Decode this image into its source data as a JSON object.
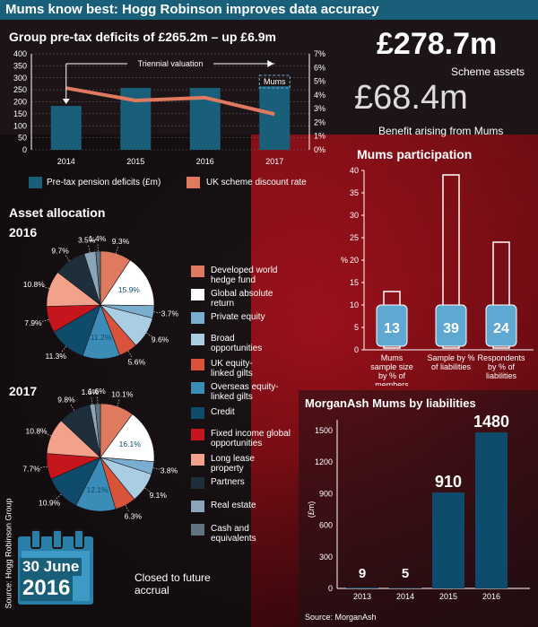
{
  "title": "Mums know best: Hogg Robinson improves data accuracy",
  "source_side": "Source: Hogg Robinson Group",
  "colors": {
    "teal": "#1a5f7a",
    "orange": "#e07a5f",
    "dark_blue": "#0f4c6b",
    "red": "#c4161c"
  },
  "deficits": {
    "heading": "Group pre-tax deficits of £265.2m – up £6.9m",
    "annotation_triennial": "Triennial valuation",
    "annotation_mums": "Mums",
    "legend_bar": "Pre-tax pension deficits (£m)",
    "legend_line": "UK scheme discount rate"
  },
  "stats": {
    "scheme_assets_value": "£278.7m",
    "scheme_assets_label": "Scheme assets",
    "benefit_value": "£68.4m",
    "benefit_label": "Benefit arising from Mums"
  },
  "participation": {
    "heading": "Mums participation",
    "y_unit": "%",
    "labels": [
      "Mums sample size by % of members",
      "Sample by % of liabilities",
      "Respondents by % of liabilities"
    ],
    "value_labels": [
      "13",
      "39",
      "24"
    ]
  },
  "asset_allocation": {
    "heading": "Asset allocation",
    "year_2016": "2016",
    "year_2017": "2017",
    "categories": [
      "Developed world hedge fund",
      "Global absolute return",
      "Private equity",
      "Broad opportunities",
      "UK equity-linked gilts",
      "Overseas equity-linked gilts",
      "Credit",
      "Fixed income global opportunities",
      "Long lease property",
      "Partners",
      "Real estate",
      "Cash and equivalents"
    ],
    "legend_colors": [
      "#e07a5f",
      "#ffffff",
      "#7aaed0",
      "#a9cde3",
      "#d9533b",
      "#3b8db8",
      "#0f4c6b",
      "#c4161c",
      "#f2a28a",
      "#1e2e3a",
      "#8aa4b8",
      "#5f7480"
    ],
    "labels_2016": [
      "9.3%",
      "15.9%",
      "3.7%",
      "9.6%",
      "5.6%",
      "11.2%",
      "11.3%",
      "7.9%",
      "10.8%",
      "9.7%",
      "3.5%",
      "1.4%"
    ],
    "labels_2017": [
      "10.1%",
      "16.1%",
      "3.8%",
      "9.1%",
      "6.3%",
      "12.1%",
      "10.9%",
      "7.7%",
      "10.8%",
      "9.8%",
      "1.6%",
      "1.6%"
    ]
  },
  "closed": {
    "date_line1": "30 June",
    "date_line2": "2016",
    "text": "Closed to future accrual"
  },
  "morganash": {
    "heading": "MorganAsh Mums by liabilities",
    "y_unit": "(£m)",
    "value_labels": [
      "9",
      "5",
      "910",
      "1480"
    ],
    "source": "Source: MorganAsh"
  },
  "chart_data": [
    {
      "type": "bar",
      "title": "Group pre-tax deficits of £265.2m – up £6.9m",
      "categories": [
        "2014",
        "2015",
        "2016",
        "2017"
      ],
      "series": [
        {
          "name": "Pre-tax pension deficits (£m)",
          "type": "bar",
          "axis": "left",
          "values": [
            183,
            258,
            258,
            265.2
          ]
        },
        {
          "name": "UK scheme discount rate",
          "type": "line",
          "axis": "right",
          "values": [
            4.5,
            3.6,
            3.8,
            2.6
          ]
        }
      ],
      "ylim": [
        0,
        400
      ],
      "yticks": [
        0,
        50,
        100,
        150,
        200,
        250,
        300,
        350,
        400
      ],
      "y2lim": [
        0,
        7
      ],
      "y2ticks": [
        "0%",
        "1%",
        "2%",
        "3%",
        "4%",
        "5%",
        "6%",
        "7%"
      ],
      "grid": true
    },
    {
      "type": "bar",
      "title": "Mums participation",
      "categories": [
        "Mums sample size by % of members",
        "Sample by % of liabilities",
        "Respondents by % of liabilities"
      ],
      "values": [
        13,
        39,
        24
      ],
      "ylabel": "%",
      "ylim": [
        0,
        40
      ],
      "yticks": [
        0,
        5,
        10,
        15,
        20,
        25,
        30,
        35,
        40
      ]
    },
    {
      "type": "pie",
      "title": "2016",
      "categories": [
        "Developed world hedge fund",
        "Global absolute return",
        "Private equity",
        "Broad opportunities",
        "UK equity-linked gilts",
        "Overseas equity-linked gilts",
        "Credit",
        "Fixed income global opportunities",
        "Long lease property",
        "Partners",
        "Real estate",
        "Cash and equivalents"
      ],
      "values": [
        9.3,
        15.9,
        3.7,
        9.6,
        5.6,
        11.2,
        11.3,
        7.9,
        10.8,
        9.7,
        3.5,
        1.4
      ]
    },
    {
      "type": "pie",
      "title": "2017",
      "categories": [
        "Developed world hedge fund",
        "Global absolute return",
        "Private equity",
        "Broad opportunities",
        "UK equity-linked gilts",
        "Overseas equity-linked gilts",
        "Credit",
        "Fixed income global opportunities",
        "Long lease property",
        "Partners",
        "Real estate",
        "Cash and equivalents"
      ],
      "values": [
        10.1,
        16.1,
        3.8,
        9.1,
        6.3,
        12.1,
        10.9,
        7.7,
        10.8,
        9.8,
        1.6,
        1.6
      ]
    },
    {
      "type": "bar",
      "title": "MorganAsh Mums by liabilities",
      "categories": [
        "2013",
        "2014",
        "2015",
        "2016"
      ],
      "values": [
        9,
        5,
        910,
        1480
      ],
      "ylabel": "(£m)",
      "ylim": [
        0,
        1600
      ],
      "yticks": [
        0,
        300,
        600,
        900,
        1200,
        1500
      ]
    }
  ]
}
